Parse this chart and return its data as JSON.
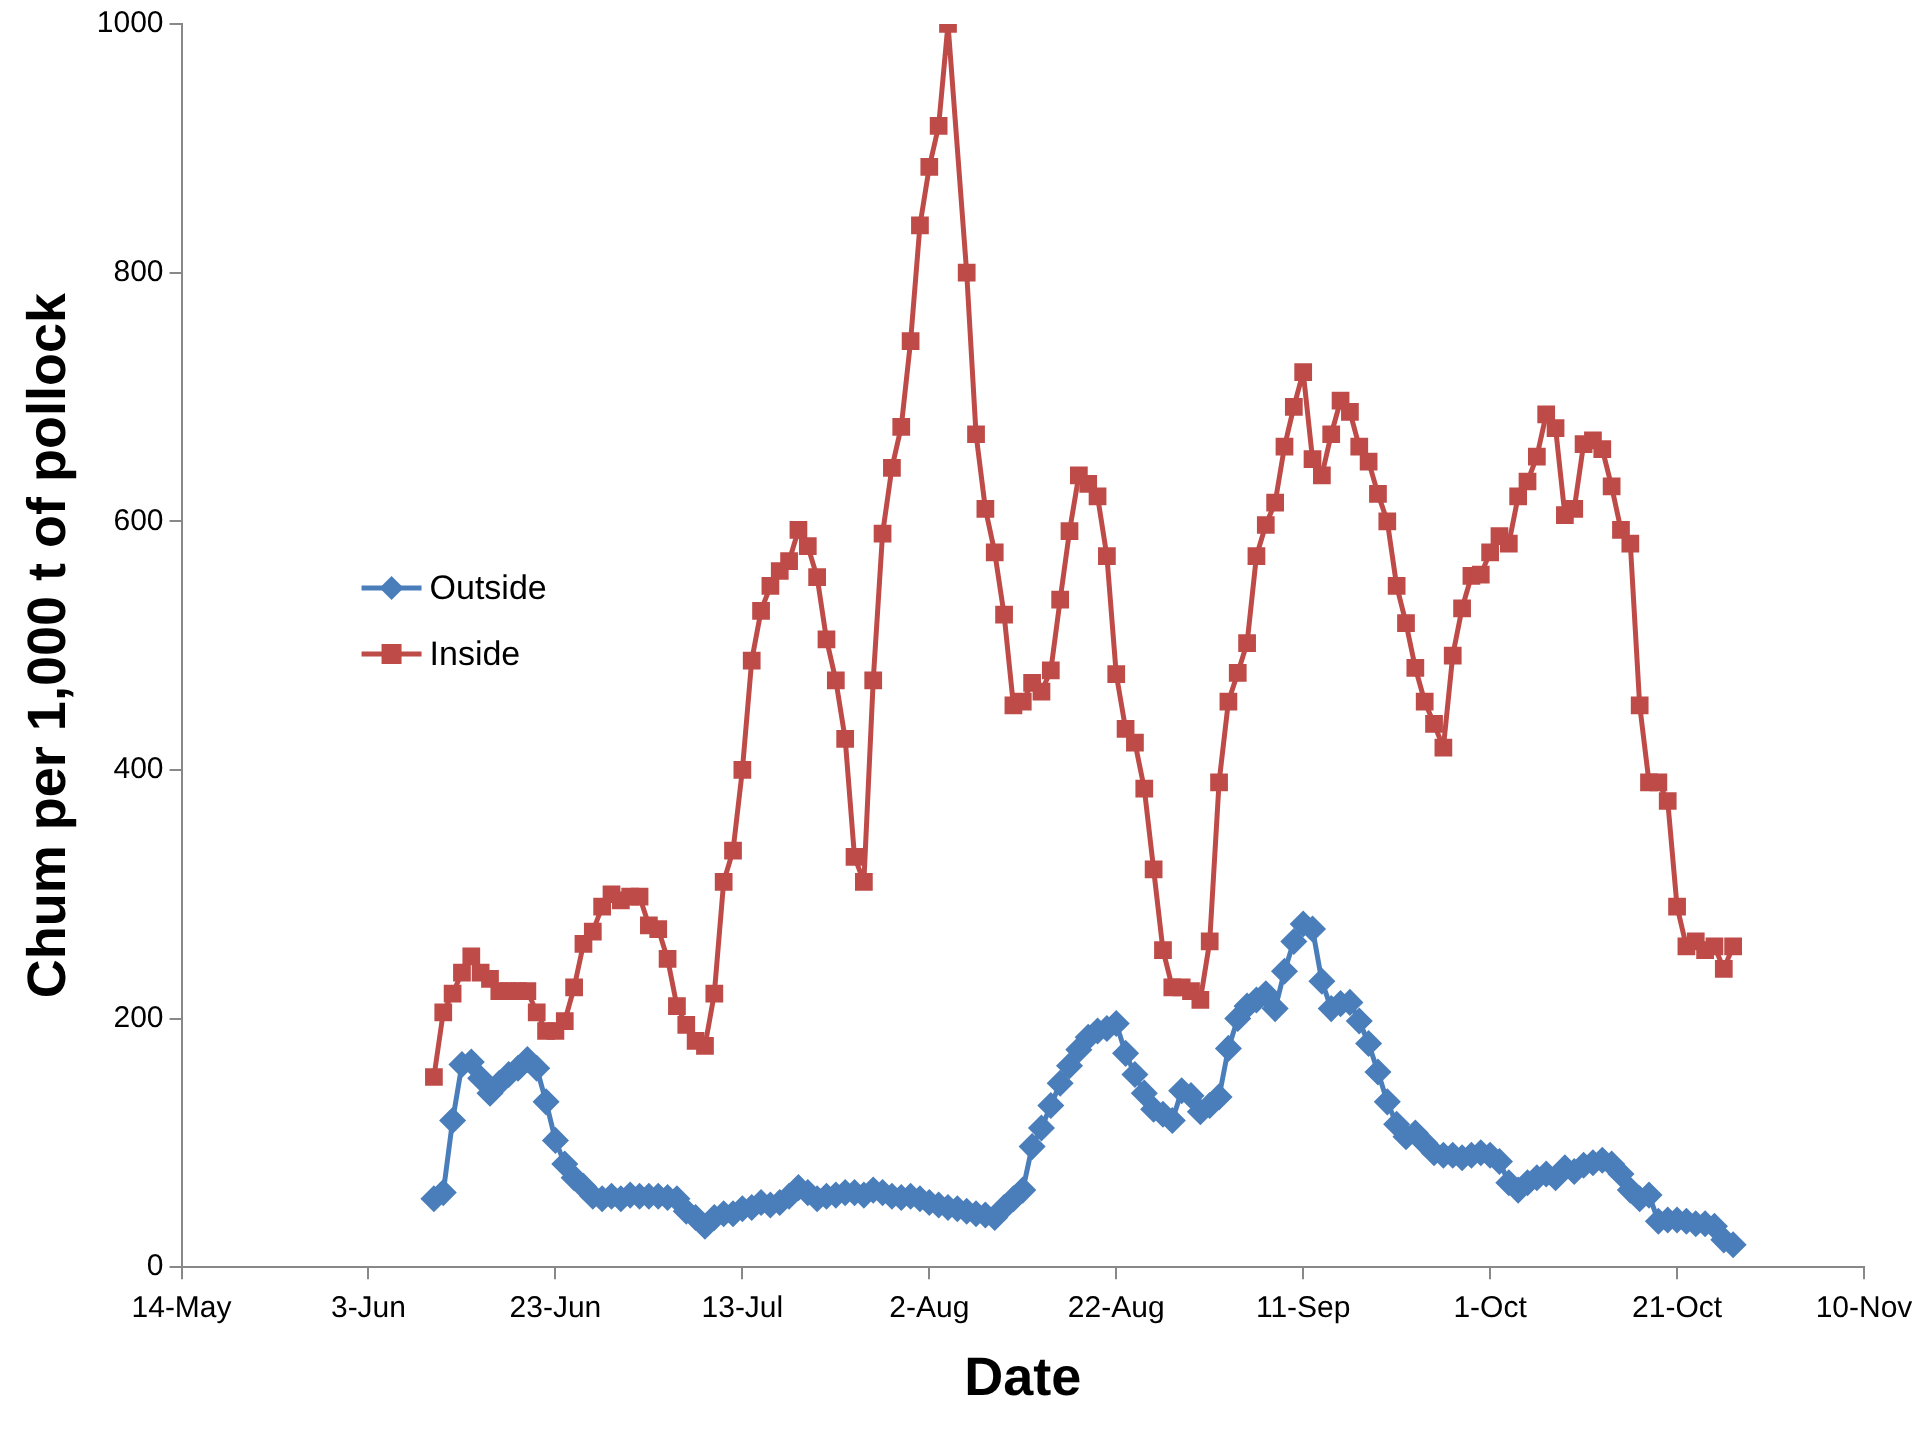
{
  "chart_data": {
    "type": "line",
    "xlabel": "Date",
    "ylabel": "Chum per 1,000 t of pollock",
    "x": [
      "--06-10",
      "--06-11",
      "--06-12",
      "--06-13",
      "--06-14",
      "--06-15",
      "--06-16",
      "--06-17",
      "--06-18",
      "--06-19",
      "--06-20",
      "--06-21",
      "--06-22",
      "--06-23",
      "--06-24",
      "--06-25",
      "--06-26",
      "--06-27",
      "--06-28",
      "--06-29",
      "--06-30",
      "--07-01",
      "--07-02",
      "--07-03",
      "--07-04",
      "--07-05",
      "--07-06",
      "--07-07",
      "--07-08",
      "--07-09",
      "--07-10",
      "--07-11",
      "--07-12",
      "--07-13",
      "--07-14",
      "--07-15",
      "--07-16",
      "--07-17",
      "--07-18",
      "--07-19",
      "--07-20",
      "--07-21",
      "--07-22",
      "--07-23",
      "--07-24",
      "--07-25",
      "--07-26",
      "--07-27",
      "--07-28",
      "--07-29",
      "--07-30",
      "--07-31",
      "--08-01",
      "--08-02",
      "--08-03",
      "--08-04",
      "--08-05",
      "--08-06",
      "--08-07",
      "--08-08",
      "--08-09",
      "--08-10",
      "--08-11",
      "--08-12",
      "--08-13",
      "--08-14",
      "--08-15",
      "--08-16",
      "--08-17",
      "--08-18",
      "--08-19",
      "--08-20",
      "--08-21",
      "--08-22",
      "--08-23",
      "--08-24",
      "--08-25",
      "--08-26",
      "--08-27",
      "--08-28",
      "--08-29",
      "--08-30",
      "--08-31",
      "--09-01",
      "--09-02",
      "--09-03",
      "--09-04",
      "--09-05",
      "--09-06",
      "--09-07",
      "--09-08",
      "--09-09",
      "--09-10",
      "--09-11",
      "--09-12",
      "--09-13",
      "--09-14",
      "--09-15",
      "--09-16",
      "--09-17",
      "--09-18",
      "--09-19",
      "--09-20",
      "--09-21",
      "--09-22",
      "--09-23",
      "--09-24",
      "--09-25",
      "--09-26",
      "--09-27",
      "--09-28",
      "--09-29",
      "--09-30",
      "--10-01",
      "--10-02",
      "--10-03",
      "--10-04",
      "--10-05",
      "--10-06",
      "--10-07",
      "--10-08",
      "--10-09",
      "--10-10",
      "--10-11",
      "--10-12",
      "--10-13",
      "--10-14",
      "--10-15",
      "--10-16",
      "--10-17",
      "--10-18",
      "--10-19",
      "--10-20",
      "--10-21",
      "--10-22",
      "--10-23",
      "--10-24",
      "--10-25",
      "--10-26",
      "--10-27"
    ],
    "xlim": [
      "--05-14",
      "--11-10"
    ],
    "xticks": [
      {
        "value": "--05-14",
        "label": "14-May"
      },
      {
        "value": "--06-03",
        "label": "3-Jun"
      },
      {
        "value": "--06-23",
        "label": "23-Jun"
      },
      {
        "value": "--07-13",
        "label": "13-Jul"
      },
      {
        "value": "--08-02",
        "label": "2-Aug"
      },
      {
        "value": "--08-22",
        "label": "22-Aug"
      },
      {
        "value": "--09-11",
        "label": "11-Sep"
      },
      {
        "value": "--10-01",
        "label": "1-Oct"
      },
      {
        "value": "--10-21",
        "label": "21-Oct"
      },
      {
        "value": "--11-10",
        "label": "10-Nov"
      }
    ],
    "ylim": [
      0,
      1000
    ],
    "yticks": [
      0,
      200,
      400,
      600,
      800,
      1000
    ],
    "grid": false,
    "legend": "left",
    "series": [
      {
        "name": "Outside",
        "color": "#4a7ebb",
        "marker": "diamond",
        "values": [
          55,
          60,
          118,
          163,
          165,
          152,
          140,
          148,
          155,
          160,
          167,
          160,
          133,
          102,
          83,
          72,
          65,
          57,
          55,
          57,
          55,
          58,
          57,
          57,
          57,
          56,
          55,
          45,
          40,
          33,
          40,
          43,
          43,
          47,
          48,
          52,
          50,
          52,
          57,
          64,
          60,
          55,
          57,
          58,
          60,
          60,
          58,
          62,
          60,
          57,
          56,
          57,
          55,
          52,
          50,
          48,
          47,
          45,
          43,
          42,
          40,
          48,
          55,
          62,
          97,
          112,
          130,
          148,
          162,
          175,
          185,
          190,
          192,
          196,
          172,
          155,
          140,
          127,
          123,
          118,
          142,
          138,
          125,
          130,
          137,
          176,
          200,
          210,
          215,
          220,
          208,
          238,
          262,
          276,
          272,
          230,
          208,
          212,
          213,
          198,
          180,
          157,
          133,
          115,
          105,
          108,
          100,
          92,
          90,
          90,
          88,
          90,
          92,
          90,
          85,
          68,
          62,
          68,
          72,
          75,
          72,
          80,
          77,
          82,
          84,
          86,
          83,
          75,
          62,
          55,
          58,
          37,
          38,
          38,
          37,
          35,
          35,
          33,
          22,
          18
        ]
      },
      {
        "name": "Inside",
        "color": "#be4b48",
        "marker": "square",
        "values": [
          153,
          205,
          220,
          237,
          250,
          237,
          232,
          222,
          222,
          222,
          222,
          205,
          190,
          190,
          198,
          225,
          260,
          270,
          290,
          300,
          295,
          298,
          298,
          275,
          272,
          248,
          210,
          195,
          182,
          178,
          220,
          310,
          335,
          400,
          488,
          528,
          548,
          560,
          568,
          593,
          580,
          555,
          505,
          472,
          425,
          330,
          310,
          472,
          590,
          643,
          676,
          745,
          838,
          885,
          918,
          1000,
          null,
          800,
          670,
          610,
          575,
          525,
          452,
          455,
          470,
          463,
          480,
          537,
          592,
          637,
          630,
          620,
          572,
          477,
          433,
          422,
          385,
          320,
          255,
          225,
          225,
          222,
          215,
          262,
          390,
          455,
          478,
          502,
          572,
          597,
          615,
          660,
          692,
          720,
          650,
          637,
          670,
          697,
          688,
          660,
          648,
          622,
          600,
          548,
          518,
          482,
          455,
          437,
          418,
          492,
          530,
          556,
          557,
          575,
          588,
          582,
          620,
          632,
          652,
          686,
          675,
          605,
          610,
          662,
          665,
          658,
          628,
          593,
          582,
          452,
          390,
          390,
          375,
          290,
          258,
          262,
          255,
          258,
          240,
          258
        ]
      }
    ]
  }
}
